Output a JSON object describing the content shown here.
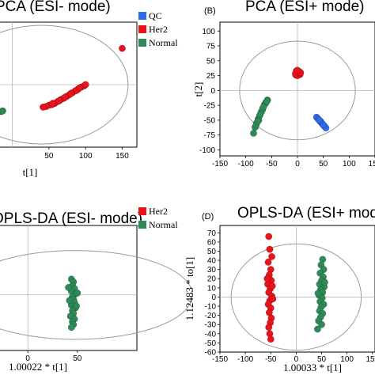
{
  "chart_data": [
    {
      "panel": "A",
      "type": "scatter",
      "title": "PCA (ESI- mode)",
      "panel_letter": "",
      "xlabel": "t[1]",
      "ylabel": "",
      "xticks": [
        "50",
        "100",
        "150"
      ],
      "yticks": [],
      "xlim": [
        -60,
        170
      ],
      "ylim": [
        -100,
        100
      ],
      "legend": {
        "placement": "top-right",
        "entries": [
          "QC",
          "Her2",
          "Normal"
        ]
      },
      "colors": {
        "QC": "#2f6ae8",
        "Her2": "#e8131b",
        "Normal": "#2e8b57"
      },
      "series": [
        {
          "name": "QC",
          "points": [
            [
              -57,
              57
            ],
            [
              -56,
              52
            ],
            [
              -58,
              49
            ],
            [
              -56,
              45
            ],
            [
              -57,
              42
            ],
            [
              -55,
              38
            ],
            [
              -58,
              35
            ],
            [
              -56,
              31
            ],
            [
              -57,
              27
            ],
            [
              -55,
              55
            ],
            [
              -58,
              40
            ],
            [
              -56,
              33
            ]
          ]
        },
        {
          "name": "Her2",
          "points": [
            [
              42,
              -36
            ],
            [
              46,
              -35
            ],
            [
              50,
              -33
            ],
            [
              54,
              -32
            ],
            [
              58,
              -30
            ],
            [
              62,
              -27
            ],
            [
              66,
              -24
            ],
            [
              70,
              -22
            ],
            [
              74,
              -19
            ],
            [
              78,
              -16
            ],
            [
              82,
              -13
            ],
            [
              86,
              -10
            ],
            [
              90,
              -7
            ],
            [
              94,
              -4
            ],
            [
              98,
              -2
            ],
            [
              100,
              0
            ],
            [
              64,
              -26
            ],
            [
              72,
              -20
            ],
            [
              80,
              -14
            ],
            [
              88,
              -9
            ],
            [
              55,
              -30
            ],
            [
              92,
              -5
            ],
            [
              150,
              58
            ]
          ]
        },
        {
          "name": "Normal",
          "points": [
            [
              -58,
              -55
            ],
            [
              -53,
              -52
            ],
            [
              -48,
              -50
            ],
            [
              -43,
              -48
            ],
            [
              -38,
              -47
            ],
            [
              -33,
              -46
            ],
            [
              -28,
              -45
            ],
            [
              -23,
              -44
            ],
            [
              -18,
              -43
            ],
            [
              -13,
              -42
            ],
            [
              -45,
              -49
            ],
            [
              -35,
              -47
            ],
            [
              -25,
              -45
            ],
            [
              -15,
              -43
            ],
            [
              -55,
              -54
            ],
            [
              -40,
              -49
            ],
            [
              -20,
              -44
            ],
            [
              -30,
              -46
            ]
          ]
        }
      ]
    },
    {
      "panel": "B",
      "type": "scatter",
      "title": "PCA (ESI+ mode)",
      "panel_letter": "(B)",
      "xlabel": "t[1]",
      "ylabel": "t[2]",
      "xticks": [
        "-150",
        "-100",
        "-50",
        "0",
        "50",
        "100",
        "150"
      ],
      "yticks": [
        "100",
        "75",
        "50",
        "25",
        "0",
        "-25",
        "-50",
        "-75",
        "-100"
      ],
      "xlim": [
        -150,
        150
      ],
      "ylim": [
        -110,
        115
      ],
      "series": [
        {
          "name": "QC",
          "points": [
            [
              37,
              -45
            ],
            [
              40,
              -48
            ],
            [
              43,
              -51
            ],
            [
              46,
              -54
            ],
            [
              49,
              -57
            ],
            [
              52,
              -60
            ],
            [
              55,
              -63
            ],
            [
              45,
              -52
            ],
            [
              50,
              -58
            ],
            [
              42,
              -50
            ]
          ]
        },
        {
          "name": "Her2",
          "points": [
            [
              -3,
              26
            ],
            [
              -1,
              30
            ],
            [
              1,
              28
            ],
            [
              3,
              32
            ],
            [
              5,
              27
            ],
            [
              0,
              25
            ],
            [
              -2,
              33
            ],
            [
              4,
              29
            ],
            [
              2,
              31
            ],
            [
              -4,
              28
            ],
            [
              6,
              30
            ],
            [
              0,
              34
            ]
          ]
        },
        {
          "name": "Normal",
          "points": [
            [
              -85,
              -72
            ],
            [
              -82,
              -62
            ],
            [
              -79,
              -55
            ],
            [
              -76,
              -48
            ],
            [
              -73,
              -42
            ],
            [
              -70,
              -36
            ],
            [
              -67,
              -30
            ],
            [
              -64,
              -24
            ],
            [
              -61,
              -20
            ],
            [
              -58,
              -16
            ],
            [
              -75,
              -50
            ],
            [
              -68,
              -33
            ],
            [
              -62,
              -22
            ],
            [
              -80,
              -58
            ],
            [
              -72,
              -40
            ],
            [
              -66,
              -28
            ],
            [
              -59,
              -18
            ],
            [
              -77,
              -52
            ]
          ]
        }
      ]
    },
    {
      "panel": "C",
      "type": "scatter",
      "title": "OPLS-DA (ESI- mode)",
      "panel_letter": "",
      "xlabel": "1.00022 * t[1]",
      "ylabel": "",
      "xticks": [
        "0",
        "50"
      ],
      "yticks": [],
      "xlim": [
        -60,
        110
      ],
      "ylim": [
        -60,
        75
      ],
      "legend": {
        "placement": "top-right",
        "entries": [
          "Her2",
          "Normal"
        ]
      },
      "colors": {
        "Her2": "#e8131b",
        "Normal": "#2e8b57"
      },
      "series": [
        {
          "name": "Normal",
          "points": [
            [
              44,
              17
            ],
            [
              46,
              14
            ],
            [
              45,
              10
            ],
            [
              47,
              7
            ],
            [
              44,
              4
            ],
            [
              48,
              1
            ],
            [
              45,
              -2
            ],
            [
              46,
              -5
            ],
            [
              47,
              -8
            ],
            [
              44,
              -11
            ],
            [
              48,
              -14
            ],
            [
              45,
              -17
            ],
            [
              46,
              -20
            ],
            [
              43,
              -23
            ],
            [
              47,
              -26
            ],
            [
              45,
              -29
            ],
            [
              46,
              -32
            ],
            [
              44,
              -35
            ],
            [
              49,
              -12
            ],
            [
              42,
              -6
            ],
            [
              50,
              2
            ],
            [
              41,
              8
            ]
          ]
        }
      ]
    },
    {
      "panel": "D",
      "type": "scatter",
      "title": "OPLS-DA (ESI+ mode)",
      "panel_letter": "(D)",
      "xlabel": "1.00033 * t[1]",
      "ylabel": "1.12483 * to[1]",
      "xticks": [
        "-150",
        "-100",
        "-50",
        "0",
        "50",
        "100",
        "150"
      ],
      "yticks": [
        "70",
        "60",
        "50",
        "40",
        "30",
        "20",
        "10",
        "0",
        "-10",
        "-20",
        "-30",
        "-40",
        "-50",
        "-60"
      ],
      "xlim": [
        -150,
        155
      ],
      "ylim": [
        -60,
        78
      ],
      "series": [
        {
          "name": "Her2",
          "points": [
            [
              -54,
              66
            ],
            [
              -52,
              52
            ],
            [
              -48,
              44
            ],
            [
              -55,
              38
            ],
            [
              -50,
              30
            ],
            [
              -53,
              24
            ],
            [
              -49,
              18
            ],
            [
              -56,
              14
            ],
            [
              -51,
              9
            ],
            [
              -54,
              5
            ],
            [
              -48,
              1
            ],
            [
              -52,
              -4
            ],
            [
              -55,
              -8
            ],
            [
              -50,
              -12
            ],
            [
              -53,
              -17
            ],
            [
              -49,
              -23
            ],
            [
              -51,
              -28
            ],
            [
              -54,
              -33
            ],
            [
              -52,
              -40
            ],
            [
              -50,
              -46
            ],
            [
              -47,
              12
            ],
            [
              -57,
              20
            ],
            [
              -46,
              -2
            ]
          ]
        },
        {
          "name": "Normal",
          "points": [
            [
              52,
              41
            ],
            [
              49,
              35
            ],
            [
              54,
              30
            ],
            [
              47,
              26
            ],
            [
              53,
              22
            ],
            [
              50,
              18
            ],
            [
              46,
              14
            ],
            [
              55,
              11
            ],
            [
              48,
              8
            ],
            [
              52,
              5
            ],
            [
              45,
              2
            ],
            [
              51,
              -1
            ],
            [
              47,
              -5
            ],
            [
              54,
              -8
            ],
            [
              49,
              -11
            ],
            [
              46,
              -15
            ],
            [
              52,
              -18
            ],
            [
              48,
              -22
            ],
            [
              44,
              -26
            ],
            [
              50,
              -30
            ],
            [
              42,
              -35
            ],
            [
              56,
              16
            ],
            [
              43,
              4
            ]
          ]
        }
      ]
    }
  ]
}
